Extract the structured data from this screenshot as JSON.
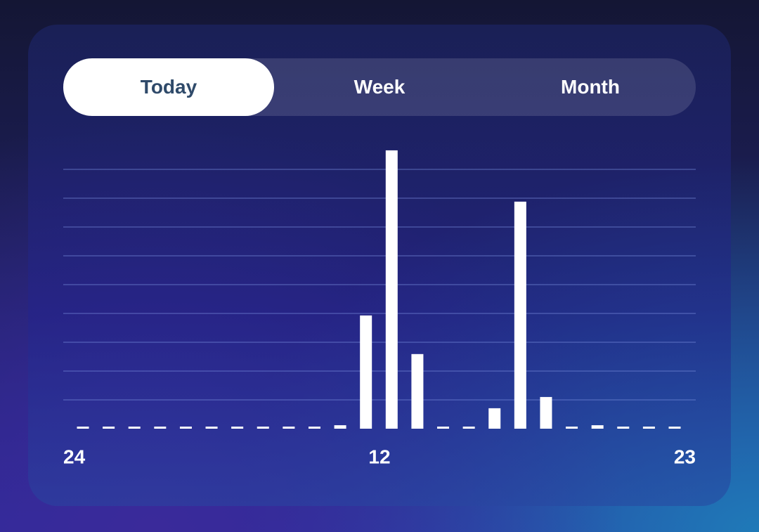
{
  "tabs": [
    "Today",
    "Week",
    "Month"
  ],
  "active_tab": 0,
  "chart_data": {
    "type": "bar",
    "color": "#ffffff",
    "grid": true,
    "values": [
      0,
      0,
      0,
      0,
      0,
      0,
      0,
      0,
      0,
      0,
      0.12,
      3.93,
      9.66,
      2.59,
      0,
      0,
      0.71,
      7.88,
      1.1,
      0,
      0.12,
      0,
      0,
      0
    ],
    "x_labels": [
      "24",
      "12",
      "23"
    ],
    "ylim": [
      0,
      10
    ],
    "yticks": [
      1,
      2,
      3,
      4,
      5,
      6,
      7,
      8,
      9
    ]
  }
}
